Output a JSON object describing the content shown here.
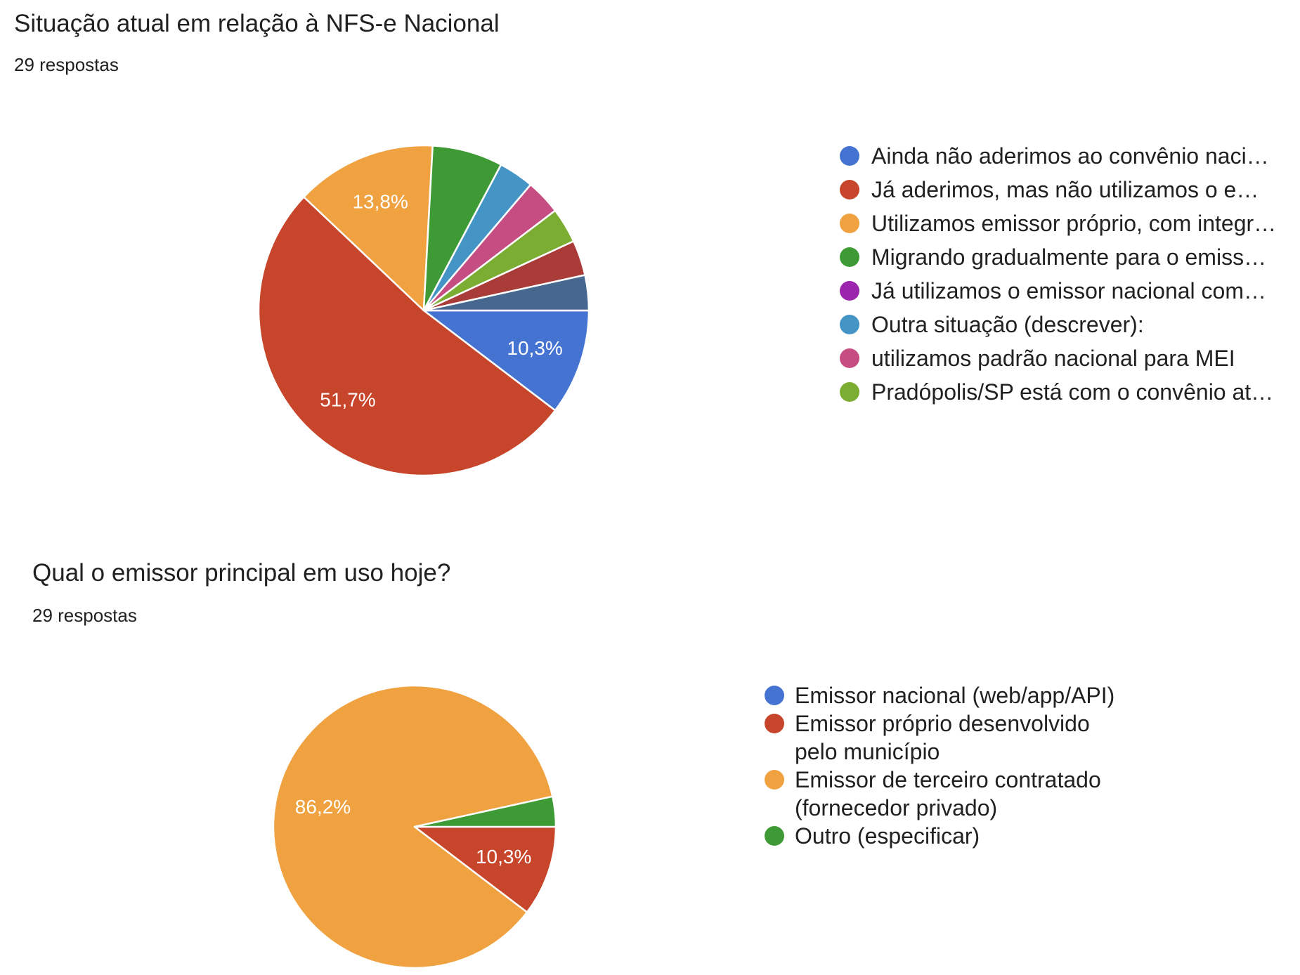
{
  "page": {
    "background": "#ffffff"
  },
  "charts": [
    {
      "title": "Situação atual em relação à NFS-e Nacional",
      "responses_label": "29 respostas",
      "chart_data": {
        "type": "pie",
        "total_responses": 29,
        "start_angle_deg_from_top": 90,
        "direction": "clockwise",
        "legend_position": "right",
        "slices": [
          {
            "label": "Ainda não aderimos ao convênio naci…",
            "value": 3,
            "pct_label": "10,3%",
            "color": "#4573D1"
          },
          {
            "label": "Já aderimos, mas não utilizamos o e…",
            "value": 15,
            "pct_label": "51,7%",
            "color": "#C7452A"
          },
          {
            "label": "Utilizamos emissor próprio, com integr…",
            "value": 4,
            "pct_label": "13,8%",
            "color": "#F0A140"
          },
          {
            "label": "Migrando gradualmente para o emiss…",
            "value": 2,
            "pct_label": "",
            "color": "#3E9A35"
          },
          {
            "label": "Já utilizamos o emissor nacional com…",
            "value": 0,
            "pct_label": "",
            "color": "#9B25AC"
          },
          {
            "label": "Outra situação (descrever):",
            "value": 1,
            "pct_label": "",
            "color": "#4495C6"
          },
          {
            "label": "utilizamos padrão nacional para MEI",
            "value": 1,
            "pct_label": "",
            "color": "#C64D82"
          },
          {
            "label": "Pradópolis/SP está com o convênio at…",
            "value": 1,
            "pct_label": "",
            "color": "#7CAD33"
          },
          {
            "label": "",
            "value": 1,
            "pct_label": "",
            "color": "#A93C38"
          },
          {
            "label": "",
            "value": 1,
            "pct_label": "",
            "color": "#46688E"
          }
        ]
      }
    },
    {
      "title": "Qual o emissor principal em uso hoje?",
      "responses_label": "29 respostas",
      "chart_data": {
        "type": "pie",
        "total_responses": 29,
        "start_angle_deg_from_top": 90,
        "direction": "clockwise",
        "legend_position": "right",
        "slices": [
          {
            "label": "Emissor nacional (web/app/API)",
            "value": 0,
            "pct_label": "",
            "color": "#4573D1"
          },
          {
            "label": "Emissor próprio desenvolvido pelo município",
            "value": 3,
            "pct_label": "10,3%",
            "color": "#C7452A"
          },
          {
            "label": "Emissor de terceiro contratado (fornecedor privado)",
            "value": 25,
            "pct_label": "86,2%",
            "color": "#F0A140"
          },
          {
            "label": "Outro (especificar)",
            "value": 1,
            "pct_label": "",
            "color": "#3E9A35"
          }
        ]
      }
    }
  ]
}
